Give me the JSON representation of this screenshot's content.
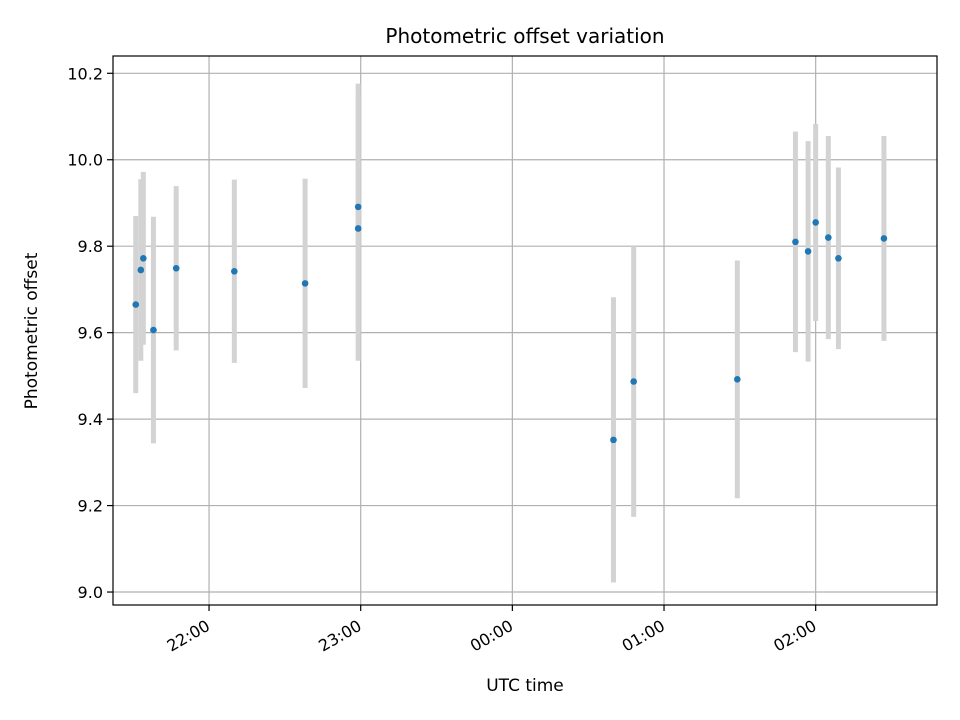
{
  "chart_data": {
    "type": "scatter",
    "title": "Photometric offset variation",
    "xlabel": "UTC time",
    "ylabel": "Photometric offset",
    "grid": true,
    "xlim": [
      "21:22",
      "02:48"
    ],
    "ylim": [
      8.97,
      10.24
    ],
    "x_ticks": [
      "22:00",
      "23:00",
      "00:00",
      "01:00",
      "02:00"
    ],
    "y_ticks": [
      "9.0",
      "9.2",
      "9.4",
      "9.6",
      "9.8",
      "10.0",
      "10.2"
    ],
    "colors": {
      "point": "#1f77b4",
      "errorbar": "#d3d3d3",
      "grid": "#b0b0b0"
    },
    "points": [
      {
        "x": "21:31",
        "y": 9.665,
        "err": 0.205
      },
      {
        "x": "21:33",
        "y": 9.745,
        "err": 0.21
      },
      {
        "x": "21:34",
        "y": 9.772,
        "err": 0.2
      },
      {
        "x": "21:38",
        "y": 9.606,
        "err": 0.262
      },
      {
        "x": "21:47",
        "y": 9.749,
        "err": 0.19
      },
      {
        "x": "22:10",
        "y": 9.742,
        "err": 0.212
      },
      {
        "x": "22:38",
        "y": 9.714,
        "err": 0.242
      },
      {
        "x": "22:59",
        "y": 9.891,
        "err": 0.285
      },
      {
        "x": "22:59",
        "y": 9.841,
        "err": 0.306
      },
      {
        "x": "00:40",
        "y": 9.352,
        "err": 0.33
      },
      {
        "x": "00:48",
        "y": 9.487,
        "err": 0.313
      },
      {
        "x": "01:29",
        "y": 9.492,
        "err": 0.275
      },
      {
        "x": "01:52",
        "y": 9.81,
        "err": 0.255
      },
      {
        "x": "01:57",
        "y": 9.788,
        "err": 0.255
      },
      {
        "x": "02:00",
        "y": 9.855,
        "err": 0.228
      },
      {
        "x": "02:05",
        "y": 9.82,
        "err": 0.235
      },
      {
        "x": "02:09",
        "y": 9.772,
        "err": 0.21
      },
      {
        "x": "02:27",
        "y": 9.818,
        "err": 0.237
      }
    ]
  }
}
